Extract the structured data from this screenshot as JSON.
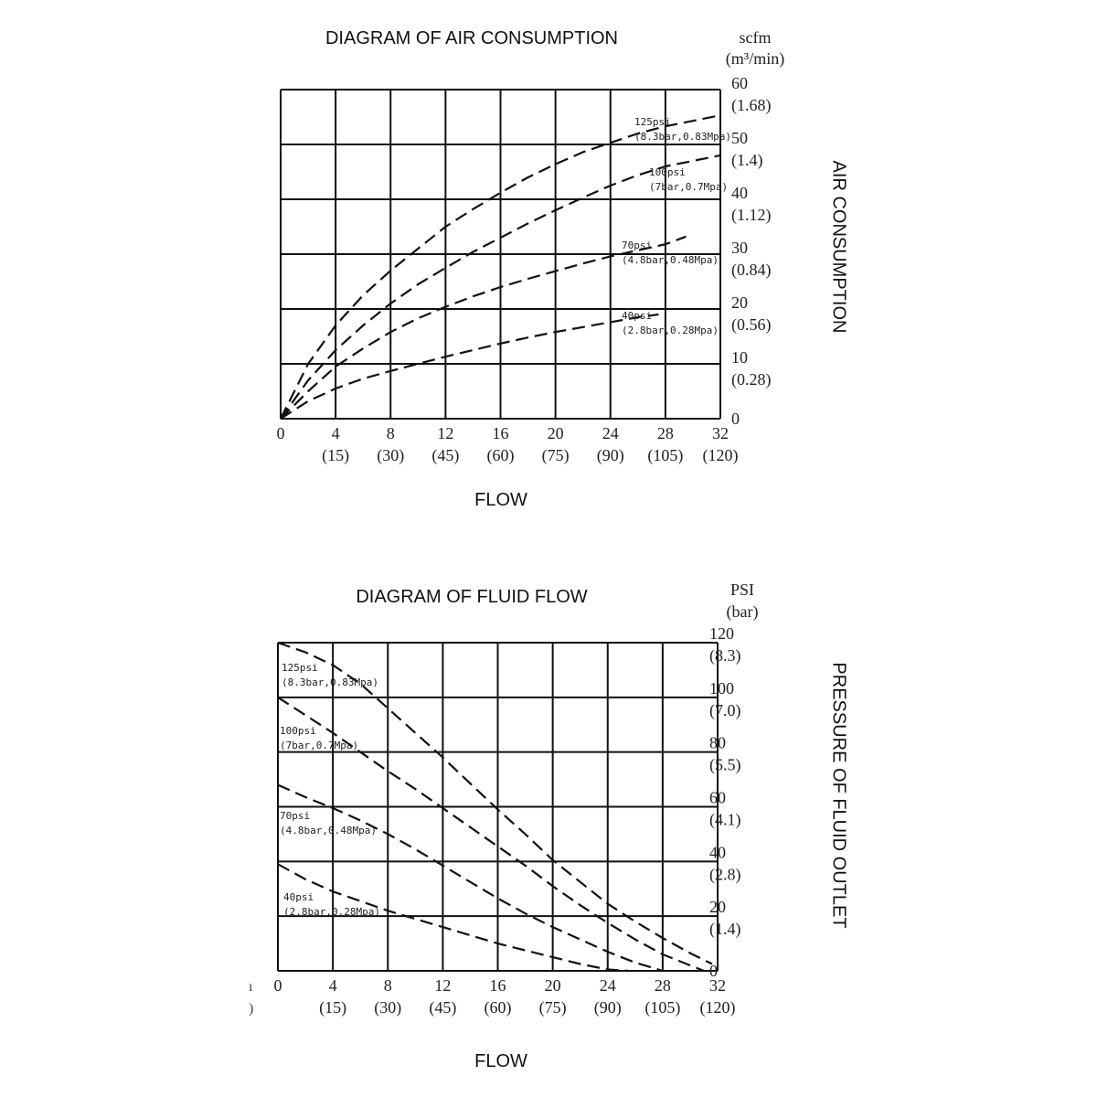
{
  "chart_data": [
    {
      "type": "line",
      "title": "DIAGRAM OF AIR CONSUMPTION",
      "xlabel": "FLOW",
      "ylabel": "AIR CONSUMPTION",
      "y_unit_primary": "scfm",
      "y_unit_secondary": "(m³/min)",
      "xlim": [
        0,
        32
      ],
      "ylim": [
        0,
        60
      ],
      "grid": true,
      "x_ticks": [
        {
          "value": 0,
          "primary": "0",
          "secondary": ""
        },
        {
          "value": 4,
          "primary": "4",
          "secondary": "(15)"
        },
        {
          "value": 8,
          "primary": "8",
          "secondary": "(30)"
        },
        {
          "value": 12,
          "primary": "12",
          "secondary": "(45)"
        },
        {
          "value": 16,
          "primary": "16",
          "secondary": "(60)"
        },
        {
          "value": 20,
          "primary": "20",
          "secondary": "(75)"
        },
        {
          "value": 24,
          "primary": "24",
          "secondary": "(90)"
        },
        {
          "value": 28,
          "primary": "28",
          "secondary": "(105)"
        },
        {
          "value": 32,
          "primary": "32",
          "secondary": "(120)"
        }
      ],
      "y_ticks": [
        {
          "value": 60,
          "primary": "60",
          "secondary": "(1.68)"
        },
        {
          "value": 50,
          "primary": "50",
          "secondary": "(1.4)"
        },
        {
          "value": 40,
          "primary": "40",
          "secondary": "(1.12)"
        },
        {
          "value": 30,
          "primary": "30",
          "secondary": "(0.84)"
        },
        {
          "value": 20,
          "primary": "20",
          "secondary": "(0.56)"
        },
        {
          "value": 10,
          "primary": "10",
          "secondary": "(0.28)"
        },
        {
          "value": 0,
          "primary": "0",
          "secondary": ""
        }
      ],
      "series": [
        {
          "name": "125psi",
          "sub": "(8.3bar,0.83Mpa)",
          "x": [
            0,
            2,
            4,
            6,
            8,
            10,
            12,
            14,
            16,
            18,
            20,
            22,
            24,
            26,
            28,
            30,
            32
          ],
          "y": [
            0,
            10,
            17,
            22.5,
            27,
            31,
            35,
            38.2,
            41.2,
            44,
            46.4,
            48.6,
            50.3,
            52,
            53.3,
            54.3,
            55.3
          ]
        },
        {
          "name": "100psi",
          "sub": "(7bar,0.7Mpa)",
          "x": [
            0,
            2,
            4,
            6,
            8,
            10,
            12,
            14,
            16,
            18,
            20,
            22,
            24,
            26,
            28,
            30,
            32
          ],
          "y": [
            0,
            7,
            12.5,
            17,
            21,
            24.5,
            27.5,
            30.4,
            33,
            35.6,
            38,
            40.3,
            42.5,
            44.4,
            46,
            47,
            48
          ]
        },
        {
          "name": "70psi",
          "sub": "(4.8bar,0.48Mpa)",
          "x": [
            0,
            2,
            4,
            6,
            8,
            10,
            12,
            14,
            16,
            18,
            20,
            22,
            24,
            26,
            28,
            29.5
          ],
          "y": [
            0,
            5,
            9.5,
            12.8,
            15.8,
            18.3,
            20.4,
            22.3,
            24,
            25.5,
            26.9,
            28.3,
            29.6,
            30.7,
            31.8,
            33.2
          ]
        },
        {
          "name": "40psi",
          "sub": "(2.8bar,0.28Mpa)",
          "x": [
            0,
            2,
            4,
            6,
            8,
            10,
            12,
            14,
            16,
            18,
            20,
            22,
            24,
            26,
            27.5
          ],
          "y": [
            0,
            3.2,
            5.5,
            7.3,
            8.7,
            10,
            11.3,
            12.5,
            13.7,
            14.8,
            15.8,
            16.7,
            17.6,
            18.5,
            19
          ]
        }
      ]
    },
    {
      "type": "line",
      "title": "DIAGRAM OF FLUID FLOW",
      "xlabel": "FLOW",
      "ylabel": "PRESSURE OF FLUID OUTLET",
      "y_unit_primary": "PSI",
      "y_unit_secondary": "(bar)",
      "xlim": [
        0,
        32
      ],
      "ylim": [
        0,
        120
      ],
      "grid": true,
      "x_ticks": [
        {
          "value": 0,
          "primary": "0",
          "secondary": ""
        },
        {
          "value": 4,
          "primary": "4",
          "secondary": "(15)"
        },
        {
          "value": 8,
          "primary": "8",
          "secondary": "(30)"
        },
        {
          "value": 12,
          "primary": "12",
          "secondary": "(45)"
        },
        {
          "value": 16,
          "primary": "16",
          "secondary": "(60)"
        },
        {
          "value": 20,
          "primary": "20",
          "secondary": "(75)"
        },
        {
          "value": 24,
          "primary": "24",
          "secondary": "(90)"
        },
        {
          "value": 28,
          "primary": "28",
          "secondary": "(105)"
        },
        {
          "value": 32,
          "primary": "32",
          "secondary": "(120)"
        }
      ],
      "y_ticks": [
        {
          "value": 120,
          "primary": "120",
          "secondary": "(8.3)"
        },
        {
          "value": 100,
          "primary": "100",
          "secondary": "(7.0)"
        },
        {
          "value": 80,
          "primary": "80",
          "secondary": "(5.5)"
        },
        {
          "value": 60,
          "primary": "60",
          "secondary": "(4.1)"
        },
        {
          "value": 40,
          "primary": "40",
          "secondary": "(2.8)"
        },
        {
          "value": 20,
          "primary": "20",
          "secondary": "(1.4)"
        },
        {
          "value": 0,
          "primary": "0",
          "secondary": ""
        }
      ],
      "series": [
        {
          "name": "125psi",
          "sub": "(8.3bar,0.83Mpa)",
          "x": [
            0,
            2,
            4,
            6,
            8,
            10,
            12,
            14,
            16,
            18,
            20,
            22,
            24,
            26,
            28,
            30,
            31.6
          ],
          "y": [
            120,
            116.5,
            111.8,
            105,
            96,
            87,
            78,
            68.5,
            59,
            50,
            40.5,
            32.5,
            24.5,
            18,
            12,
            6.5,
            2.5
          ]
        },
        {
          "name": "100psi",
          "sub": "(7bar,0.7Mpa)",
          "x": [
            0,
            2,
            4,
            6,
            8,
            10,
            12,
            14,
            16,
            18,
            20,
            22,
            24,
            26,
            28,
            30,
            31
          ],
          "y": [
            100,
            93.5,
            87,
            80,
            73,
            66.5,
            59.5,
            52.5,
            45.5,
            38.5,
            31,
            24,
            17.5,
            11.5,
            6,
            2,
            0
          ]
        },
        {
          "name": "70psi",
          "sub": "(4.8bar,0.48Mpa)",
          "x": [
            0,
            2,
            4,
            6,
            8,
            10,
            12,
            14,
            16,
            18,
            20,
            22,
            24,
            26,
            28
          ],
          "y": [
            68,
            63.5,
            59.5,
            55,
            50,
            44.5,
            38.5,
            32.5,
            26.5,
            21,
            16,
            11.5,
            7,
            3,
            0
          ]
        },
        {
          "name": "40psi",
          "sub": "(2.8bar,0.28Mpa)",
          "x": [
            0,
            2,
            4,
            6,
            8,
            10,
            12,
            14,
            16,
            18,
            20,
            22,
            24,
            25.5
          ],
          "y": [
            39,
            33.5,
            29,
            25.5,
            22,
            19,
            16,
            13,
            10,
            7.5,
            5,
            2.5,
            0.5,
            0
          ]
        }
      ]
    }
  ],
  "bottom_left_fragments": [
    "ı",
    ")"
  ]
}
